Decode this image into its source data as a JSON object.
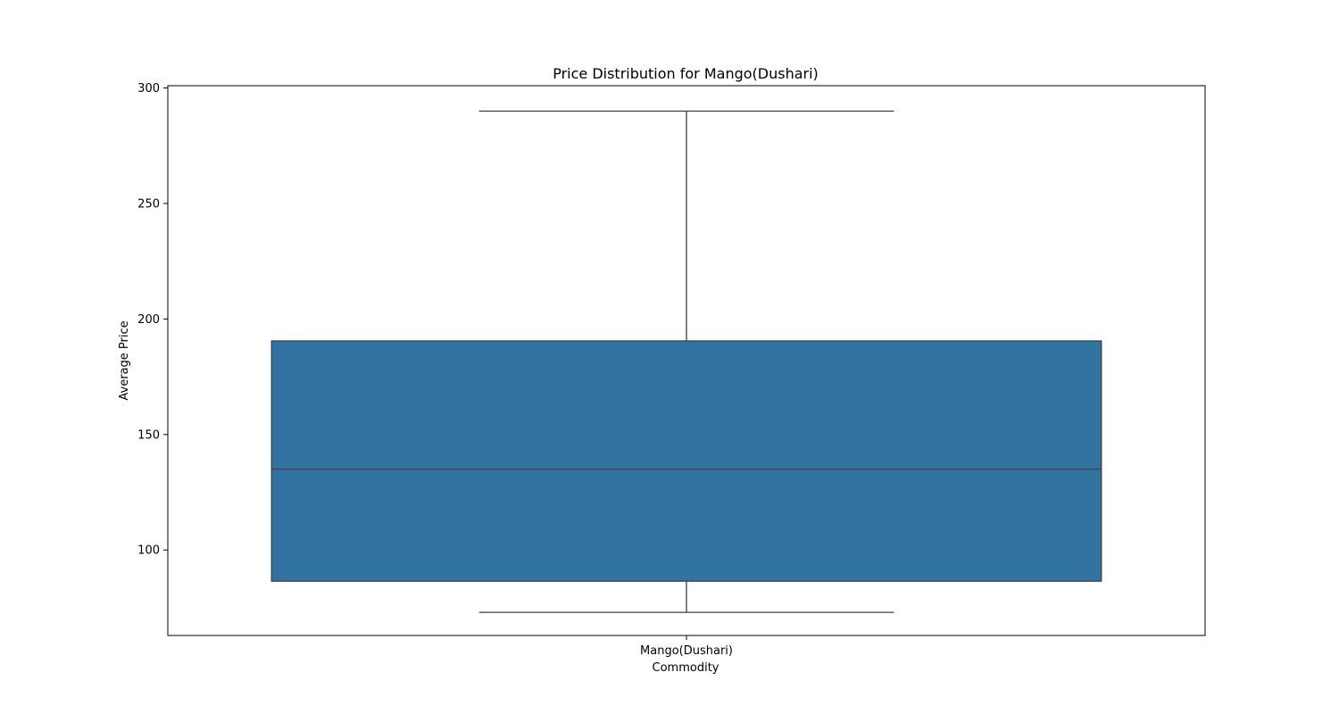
{
  "chart_data": {
    "type": "box",
    "title": "Price Distribution for Mango(Dushari)",
    "xlabel": "Commodity",
    "ylabel": "Average Price",
    "categories": [
      "Mango(Dushari)"
    ],
    "boxes": [
      {
        "category": "Mango(Dushari)",
        "whisker_low": 73,
        "q1": 86.5,
        "median": 135,
        "q3": 190.5,
        "whisker_high": 290
      }
    ],
    "ylim": [
      63,
      301
    ],
    "yticks": [
      100,
      150,
      200,
      250,
      300
    ],
    "grid": false,
    "box_color": "#3274a1",
    "line_color": "#3f3f3f"
  }
}
